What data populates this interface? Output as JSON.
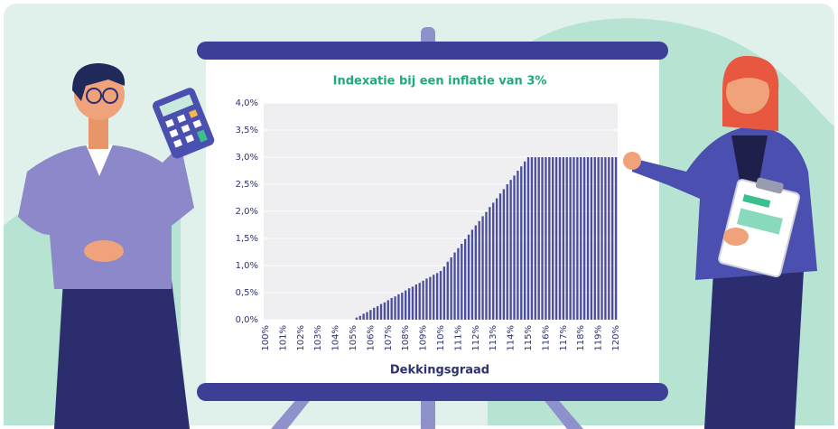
{
  "chart_data": {
    "type": "bar",
    "title": "Indexatie bij een inflatie van 3%",
    "x_label": "Dekkingsgraad",
    "categories": [
      "100%",
      null,
      null,
      null,
      null,
      "101%",
      null,
      null,
      null,
      null,
      "102%",
      null,
      null,
      null,
      null,
      "103%",
      null,
      null,
      null,
      null,
      "104%",
      null,
      null,
      null,
      null,
      "105%",
      null,
      null,
      null,
      null,
      "106%",
      null,
      null,
      null,
      null,
      "107%",
      null,
      null,
      null,
      null,
      "108%",
      null,
      null,
      null,
      null,
      "109%",
      null,
      null,
      null,
      null,
      "110%",
      null,
      null,
      null,
      null,
      "111%",
      null,
      null,
      null,
      null,
      "112%",
      null,
      null,
      null,
      null,
      "113%",
      null,
      null,
      null,
      null,
      "114%",
      null,
      null,
      null,
      null,
      "115%",
      null,
      null,
      null,
      null,
      "116%",
      null,
      null,
      null,
      null,
      "117%",
      null,
      null,
      null,
      null,
      "118%",
      null,
      null,
      null,
      null,
      "119%",
      null,
      null,
      null,
      null,
      "120%"
    ],
    "values": [
      0,
      0,
      0,
      0,
      0,
      0,
      0,
      0,
      0,
      0,
      0,
      0,
      0,
      0,
      0,
      0,
      0,
      0,
      0,
      0,
      0,
      0,
      0,
      0,
      0,
      0,
      0.04,
      0.07,
      0.11,
      0.14,
      0.18,
      0.22,
      0.25,
      0.29,
      0.32,
      0.36,
      0.4,
      0.43,
      0.47,
      0.5,
      0.54,
      0.58,
      0.61,
      0.65,
      0.68,
      0.72,
      0.76,
      0.79,
      0.83,
      0.86,
      0.9,
      0.98,
      1.07,
      1.15,
      1.24,
      1.32,
      1.4,
      1.49,
      1.57,
      1.66,
      1.74,
      1.82,
      1.91,
      1.99,
      2.08,
      2.16,
      2.24,
      2.33,
      2.41,
      2.5,
      2.58,
      2.66,
      2.75,
      2.83,
      2.92,
      3.0,
      3.0,
      3.0,
      3.0,
      3.0,
      3.0,
      3.0,
      3.0,
      3.0,
      3.0,
      3.0,
      3.0,
      3.0,
      3.0,
      3.0,
      3.0,
      3.0,
      3.0,
      3.0,
      3.0,
      3.0,
      3.0,
      3.0,
      3.0,
      3.0,
      3.0
    ],
    "color": "#4b4f9e",
    "ylim": [
      0,
      4
    ],
    "yticks": [
      {
        "value": 0,
        "label": "0,0%"
      },
      {
        "value": 0.5,
        "label": "0,5%"
      },
      {
        "value": 1,
        "label": "1,0%"
      },
      {
        "value": 1.5,
        "label": "1,5%"
      },
      {
        "value": 2,
        "label": "2,0%"
      },
      {
        "value": 2.5,
        "label": "2,5%"
      },
      {
        "value": 3,
        "label": "3,0%"
      },
      {
        "value": 3.5,
        "label": "3,5%"
      },
      {
        "value": 4,
        "label": "4,0%"
      }
    ],
    "grid": true
  }
}
